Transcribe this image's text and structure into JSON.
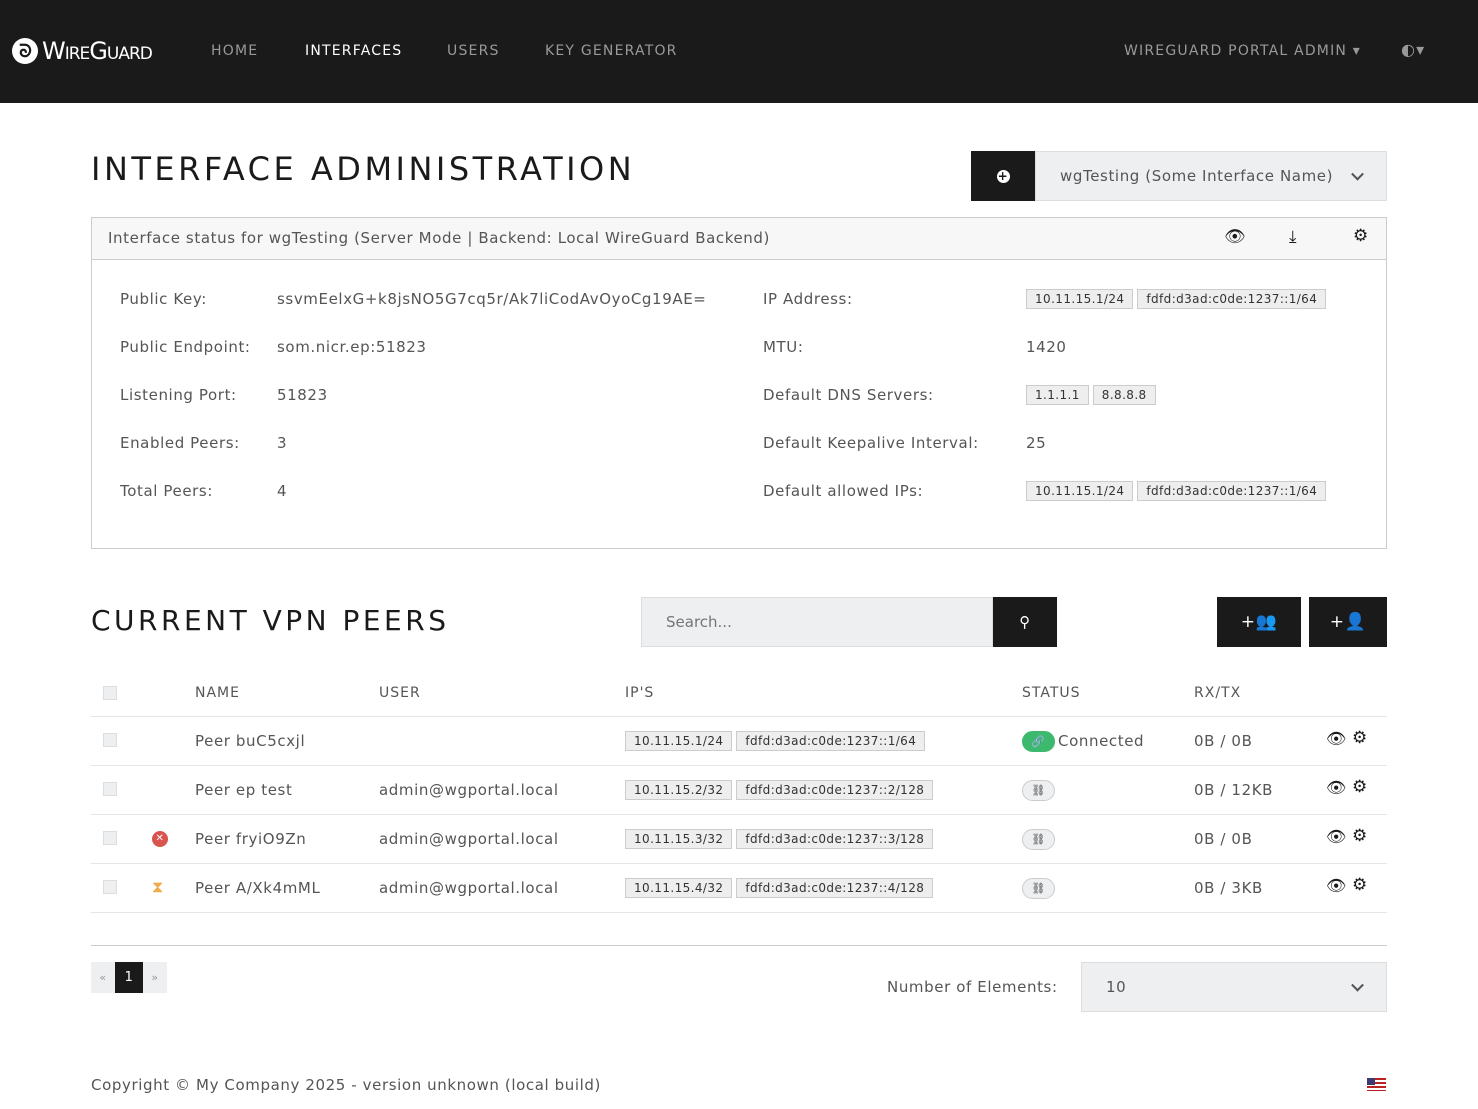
{
  "nav": {
    "brand": "WireGuard",
    "items": [
      "HOME",
      "INTERFACES",
      "USERS",
      "KEY GENERATOR"
    ],
    "active": "INTERFACES",
    "user": "WIREGUARD PORTAL ADMIN",
    "theme_icon": "contrast-icon"
  },
  "header": {
    "title": "INTERFACE ADMINISTRATION",
    "interface_select": "wgTesting (Some Interface Name)",
    "add_icon": "plus-circle-icon"
  },
  "status": {
    "title": "Interface status for wgTesting (Server Mode | Backend: Local WireGuard Backend)",
    "left": [
      {
        "label": "Public Key:",
        "value": "ssvmEelxG+k8jsNO5G7cq5r/Ak7liCodAvOyoCg19AE="
      },
      {
        "label": "Public Endpoint:",
        "value": "som.nicr.ep:51823"
      },
      {
        "label": "Listening Port:",
        "value": "51823"
      },
      {
        "label": "Enabled Peers:",
        "value": "3"
      },
      {
        "label": "Total Peers:",
        "value": "4"
      }
    ],
    "right": [
      {
        "label": "IP Address:",
        "tags": [
          "10.11.15.1/24",
          "fdfd:d3ad:c0de:1237::1/64"
        ]
      },
      {
        "label": "MTU:",
        "value": "1420"
      },
      {
        "label": "Default DNS Servers:",
        "tags": [
          "1.1.1.1",
          "8.8.8.8"
        ]
      },
      {
        "label": "Default Keepalive Interval:",
        "value": "25"
      },
      {
        "label": "Default allowed IPs:",
        "tags": [
          "10.11.15.1/24",
          "fdfd:d3ad:c0de:1237::1/64"
        ]
      }
    ]
  },
  "peers": {
    "title": "CURRENT VPN PEERS",
    "search_placeholder": "Search...",
    "columns": [
      "NAME",
      "USER",
      "IP'S",
      "STATUS",
      "RX/TX"
    ],
    "rows": [
      {
        "name": "Peer buC5cxjl",
        "user": "",
        "ips": [
          "10.11.15.1/24",
          "fdfd:d3ad:c0de:1237::1/64"
        ],
        "status": "Connected",
        "connected": true,
        "rxtx": "0B / 0B",
        "flag": ""
      },
      {
        "name": "Peer ep test",
        "user": "admin@wgportal.local",
        "ips": [
          "10.11.15.2/32",
          "fdfd:d3ad:c0de:1237::2/128"
        ],
        "status": "",
        "connected": false,
        "rxtx": "0B / 12KB",
        "flag": ""
      },
      {
        "name": "Peer fryiO9Zn",
        "user": "admin@wgportal.local",
        "ips": [
          "10.11.15.3/32",
          "fdfd:d3ad:c0de:1237::3/128"
        ],
        "status": "",
        "connected": false,
        "rxtx": "0B / 0B",
        "flag": "disabled"
      },
      {
        "name": "Peer A/Xk4mML",
        "user": "admin@wgportal.local",
        "ips": [
          "10.11.15.4/32",
          "fdfd:d3ad:c0de:1237::4/128"
        ],
        "status": "",
        "connected": false,
        "rxtx": "0B / 3KB",
        "flag": "expiring"
      }
    ]
  },
  "pagination": {
    "prev": "«",
    "current": "1",
    "next": "»",
    "count_label": "Number of Elements:",
    "count_value": "10"
  },
  "footer": {
    "copyright": "Copyright © My Company 2025 - version unknown (local build)"
  },
  "colors": {
    "nav": "#1a1a1a",
    "connected": "#3cb96c",
    "error": "#d9534f",
    "warning": "#f0ad4e"
  }
}
